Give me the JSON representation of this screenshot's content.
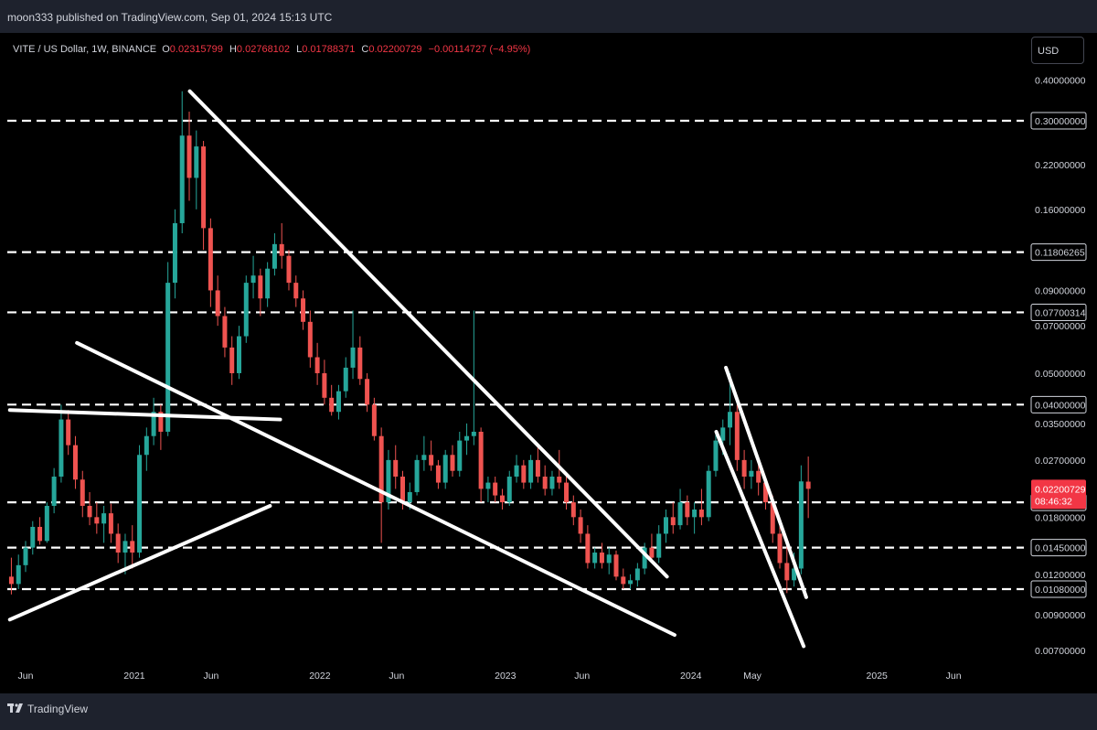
{
  "header": {
    "published_line": "moon333 published on TradingView.com, Sep 01, 2024 15:13 UTC"
  },
  "legend": {
    "symbol": "VITE / US Dollar, 1W, BINANCE",
    "open_label": "O",
    "open": "0.02315799",
    "high_label": "H",
    "high": "0.02768102",
    "low_label": "L",
    "low": "0.01788371",
    "close_label": "C",
    "close": "0.02200729",
    "change": "−0.00114727 (−4.95%)"
  },
  "currency_button": "USD",
  "footer": {
    "brand": "TradingView"
  },
  "colors": {
    "up": "#26a69a",
    "down": "#ef5350",
    "price_tag": "#f23645",
    "lines": "#ffffff",
    "background": "#000000"
  },
  "chart_data": {
    "type": "candlestick",
    "scale": "log",
    "price_axis_labels": [
      "0.40000000",
      "0.22000000",
      "0.16000000",
      "0.09000000",
      "0.07000000",
      "0.05000000",
      "0.03500000",
      "0.02700000",
      "0.01800000",
      "0.01200000",
      "0.00900000",
      "0.00700000"
    ],
    "horizontal_levels": [
      "0.30000000",
      "0.11806265",
      "0.07700314",
      "0.04000000",
      "0.02000000",
      "0.01450000",
      "0.01080000"
    ],
    "last_price": {
      "value": "0.02200729",
      "countdown": "08:46:32"
    },
    "time_axis_labels": [
      {
        "label": "Jun",
        "date": "2020-06-01"
      },
      {
        "label": "2021",
        "date": "2021-01-01"
      },
      {
        "label": "Jun",
        "date": "2021-06-01"
      },
      {
        "label": "2022",
        "date": "2022-01-01"
      },
      {
        "label": "Jun",
        "date": "2022-06-01"
      },
      {
        "label": "2023",
        "date": "2023-01-01"
      },
      {
        "label": "Jun",
        "date": "2023-06-01"
      },
      {
        "label": "2024",
        "date": "2024-01-01"
      },
      {
        "label": "May",
        "date": "2024-05-01"
      },
      {
        "label": "2025",
        "date": "2025-01-01"
      },
      {
        "label": "Jun",
        "date": "2025-06-01"
      }
    ],
    "trendlines": [
      {
        "name": "upper-falling-line",
        "p1": {
          "date": "2021-04-20",
          "price": 0.37
        },
        "p2": {
          "date": "2023-11-15",
          "price": 0.0118
        }
      },
      {
        "name": "lower-falling-line",
        "p1": {
          "date": "2020-09-10",
          "price": 0.062
        },
        "p2": {
          "date": "2023-11-30",
          "price": 0.0078
        }
      },
      {
        "name": "left-flat-line",
        "p1": {
          "date": "2020-05-01",
          "price": 0.0385
        },
        "p2": {
          "date": "2021-10-15",
          "price": 0.036
        }
      },
      {
        "name": "left-rising-line",
        "p1": {
          "date": "2020-05-01",
          "price": 0.0087
        },
        "p2": {
          "date": "2021-09-25",
          "price": 0.0195
        }
      },
      {
        "name": "wedge-upper-line",
        "p1": {
          "date": "2024-03-10",
          "price": 0.052
        },
        "p2": {
          "date": "2024-08-15",
          "price": 0.0102
        }
      },
      {
        "name": "wedge-lower-line",
        "p1": {
          "date": "2024-02-20",
          "price": 0.033
        },
        "p2": {
          "date": "2024-08-10",
          "price": 0.0072
        }
      }
    ],
    "candles": [
      {
        "d": "2020-05-04",
        "o": 0.0118,
        "h": 0.0135,
        "l": 0.0104,
        "c": 0.0112
      },
      {
        "d": "2020-05-18",
        "o": 0.0112,
        "h": 0.0138,
        "l": 0.0108,
        "c": 0.0128
      },
      {
        "d": "2020-06-01",
        "o": 0.0128,
        "h": 0.0152,
        "l": 0.0122,
        "c": 0.0145
      },
      {
        "d": "2020-06-15",
        "o": 0.0145,
        "h": 0.0175,
        "l": 0.0138,
        "c": 0.0168
      },
      {
        "d": "2020-06-29",
        "o": 0.0168,
        "h": 0.018,
        "l": 0.0148,
        "c": 0.0152
      },
      {
        "d": "2020-07-13",
        "o": 0.0152,
        "h": 0.02,
        "l": 0.015,
        "c": 0.0195
      },
      {
        "d": "2020-07-27",
        "o": 0.0195,
        "h": 0.0255,
        "l": 0.0185,
        "c": 0.024
      },
      {
        "d": "2020-08-10",
        "o": 0.024,
        "h": 0.04,
        "l": 0.023,
        "c": 0.036
      },
      {
        "d": "2020-08-24",
        "o": 0.036,
        "h": 0.0385,
        "l": 0.028,
        "c": 0.03
      },
      {
        "d": "2020-09-07",
        "o": 0.03,
        "h": 0.032,
        "l": 0.022,
        "c": 0.0235
      },
      {
        "d": "2020-09-21",
        "o": 0.0235,
        "h": 0.025,
        "l": 0.018,
        "c": 0.0195
      },
      {
        "d": "2020-10-05",
        "o": 0.0195,
        "h": 0.0215,
        "l": 0.017,
        "c": 0.018
      },
      {
        "d": "2020-10-19",
        "o": 0.018,
        "h": 0.02,
        "l": 0.016,
        "c": 0.0172
      },
      {
        "d": "2020-11-02",
        "o": 0.0172,
        "h": 0.0195,
        "l": 0.015,
        "c": 0.0185
      },
      {
        "d": "2020-11-16",
        "o": 0.0185,
        "h": 0.0198,
        "l": 0.015,
        "c": 0.016
      },
      {
        "d": "2020-11-30",
        "o": 0.016,
        "h": 0.0172,
        "l": 0.013,
        "c": 0.014
      },
      {
        "d": "2020-12-14",
        "o": 0.014,
        "h": 0.016,
        "l": 0.012,
        "c": 0.0152
      },
      {
        "d": "2020-12-28",
        "o": 0.0152,
        "h": 0.017,
        "l": 0.0125,
        "c": 0.014
      },
      {
        "d": "2021-01-11",
        "o": 0.014,
        "h": 0.03,
        "l": 0.0135,
        "c": 0.028
      },
      {
        "d": "2021-01-25",
        "o": 0.028,
        "h": 0.034,
        "l": 0.025,
        "c": 0.032
      },
      {
        "d": "2021-02-08",
        "o": 0.032,
        "h": 0.042,
        "l": 0.03,
        "c": 0.038
      },
      {
        "d": "2021-02-22",
        "o": 0.038,
        "h": 0.04,
        "l": 0.029,
        "c": 0.033
      },
      {
        "d": "2021-03-08",
        "o": 0.033,
        "h": 0.11,
        "l": 0.032,
        "c": 0.095
      },
      {
        "d": "2021-03-22",
        "o": 0.095,
        "h": 0.16,
        "l": 0.085,
        "c": 0.145
      },
      {
        "d": "2021-04-05",
        "o": 0.145,
        "h": 0.37,
        "l": 0.135,
        "c": 0.27
      },
      {
        "d": "2021-04-19",
        "o": 0.27,
        "h": 0.32,
        "l": 0.17,
        "c": 0.2
      },
      {
        "d": "2021-05-03",
        "o": 0.2,
        "h": 0.28,
        "l": 0.16,
        "c": 0.25
      },
      {
        "d": "2021-05-17",
        "o": 0.25,
        "h": 0.26,
        "l": 0.12,
        "c": 0.14
      },
      {
        "d": "2021-05-31",
        "o": 0.14,
        "h": 0.15,
        "l": 0.08,
        "c": 0.09
      },
      {
        "d": "2021-06-14",
        "o": 0.09,
        "h": 0.1,
        "l": 0.07,
        "c": 0.075
      },
      {
        "d": "2021-06-28",
        "o": 0.075,
        "h": 0.08,
        "l": 0.056,
        "c": 0.06
      },
      {
        "d": "2021-07-12",
        "o": 0.06,
        "h": 0.065,
        "l": 0.046,
        "c": 0.05
      },
      {
        "d": "2021-07-26",
        "o": 0.05,
        "h": 0.07,
        "l": 0.048,
        "c": 0.065
      },
      {
        "d": "2021-08-09",
        "o": 0.065,
        "h": 0.1,
        "l": 0.062,
        "c": 0.095
      },
      {
        "d": "2021-08-23",
        "o": 0.095,
        "h": 0.115,
        "l": 0.085,
        "c": 0.1
      },
      {
        "d": "2021-09-06",
        "o": 0.1,
        "h": 0.105,
        "l": 0.075,
        "c": 0.085
      },
      {
        "d": "2021-09-20",
        "o": 0.085,
        "h": 0.11,
        "l": 0.08,
        "c": 0.105
      },
      {
        "d": "2021-10-04",
        "o": 0.105,
        "h": 0.135,
        "l": 0.1,
        "c": 0.125
      },
      {
        "d": "2021-10-18",
        "o": 0.125,
        "h": 0.145,
        "l": 0.105,
        "c": 0.115
      },
      {
        "d": "2021-11-01",
        "o": 0.115,
        "h": 0.12,
        "l": 0.09,
        "c": 0.095
      },
      {
        "d": "2021-11-15",
        "o": 0.095,
        "h": 0.1,
        "l": 0.08,
        "c": 0.085
      },
      {
        "d": "2021-11-29",
        "o": 0.085,
        "h": 0.09,
        "l": 0.068,
        "c": 0.072
      },
      {
        "d": "2021-12-13",
        "o": 0.072,
        "h": 0.078,
        "l": 0.052,
        "c": 0.056
      },
      {
        "d": "2021-12-27",
        "o": 0.056,
        "h": 0.062,
        "l": 0.046,
        "c": 0.05
      },
      {
        "d": "2022-01-10",
        "o": 0.05,
        "h": 0.055,
        "l": 0.04,
        "c": 0.042
      },
      {
        "d": "2022-01-24",
        "o": 0.042,
        "h": 0.046,
        "l": 0.037,
        "c": 0.038
      },
      {
        "d": "2022-02-07",
        "o": 0.038,
        "h": 0.046,
        "l": 0.036,
        "c": 0.044
      },
      {
        "d": "2022-02-21",
        "o": 0.044,
        "h": 0.056,
        "l": 0.042,
        "c": 0.052
      },
      {
        "d": "2022-03-07",
        "o": 0.052,
        "h": 0.078,
        "l": 0.048,
        "c": 0.06
      },
      {
        "d": "2022-03-21",
        "o": 0.06,
        "h": 0.065,
        "l": 0.046,
        "c": 0.048
      },
      {
        "d": "2022-04-04",
        "o": 0.048,
        "h": 0.05,
        "l": 0.038,
        "c": 0.04
      },
      {
        "d": "2022-04-18",
        "o": 0.04,
        "h": 0.042,
        "l": 0.031,
        "c": 0.032
      },
      {
        "d": "2022-05-02",
        "o": 0.032,
        "h": 0.034,
        "l": 0.015,
        "c": 0.02
      },
      {
        "d": "2022-05-16",
        "o": 0.02,
        "h": 0.029,
        "l": 0.019,
        "c": 0.027
      },
      {
        "d": "2022-05-30",
        "o": 0.027,
        "h": 0.03,
        "l": 0.022,
        "c": 0.024
      },
      {
        "d": "2022-06-13",
        "o": 0.024,
        "h": 0.025,
        "l": 0.019,
        "c": 0.02
      },
      {
        "d": "2022-06-27",
        "o": 0.02,
        "h": 0.023,
        "l": 0.019,
        "c": 0.0215
      },
      {
        "d": "2022-07-11",
        "o": 0.0215,
        "h": 0.028,
        "l": 0.021,
        "c": 0.027
      },
      {
        "d": "2022-07-25",
        "o": 0.027,
        "h": 0.032,
        "l": 0.025,
        "c": 0.028
      },
      {
        "d": "2022-08-08",
        "o": 0.028,
        "h": 0.031,
        "l": 0.025,
        "c": 0.026
      },
      {
        "d": "2022-08-22",
        "o": 0.026,
        "h": 0.027,
        "l": 0.022,
        "c": 0.023
      },
      {
        "d": "2022-09-05",
        "o": 0.023,
        "h": 0.029,
        "l": 0.022,
        "c": 0.028
      },
      {
        "d": "2022-09-19",
        "o": 0.028,
        "h": 0.03,
        "l": 0.024,
        "c": 0.025
      },
      {
        "d": "2022-10-03",
        "o": 0.025,
        "h": 0.033,
        "l": 0.024,
        "c": 0.031
      },
      {
        "d": "2022-10-17",
        "o": 0.031,
        "h": 0.035,
        "l": 0.028,
        "c": 0.032
      },
      {
        "d": "2022-10-31",
        "o": 0.032,
        "h": 0.078,
        "l": 0.03,
        "c": 0.033
      },
      {
        "d": "2022-11-14",
        "o": 0.033,
        "h": 0.034,
        "l": 0.02,
        "c": 0.022
      },
      {
        "d": "2022-11-28",
        "o": 0.022,
        "h": 0.024,
        "l": 0.02,
        "c": 0.023
      },
      {
        "d": "2022-12-12",
        "o": 0.023,
        "h": 0.024,
        "l": 0.02,
        "c": 0.021
      },
      {
        "d": "2022-12-26",
        "o": 0.021,
        "h": 0.022,
        "l": 0.019,
        "c": 0.02
      },
      {
        "d": "2023-01-09",
        "o": 0.02,
        "h": 0.025,
        "l": 0.0195,
        "c": 0.024
      },
      {
        "d": "2023-01-23",
        "o": 0.024,
        "h": 0.028,
        "l": 0.023,
        "c": 0.026
      },
      {
        "d": "2023-02-06",
        "o": 0.026,
        "h": 0.027,
        "l": 0.022,
        "c": 0.023
      },
      {
        "d": "2023-02-20",
        "o": 0.023,
        "h": 0.028,
        "l": 0.022,
        "c": 0.027
      },
      {
        "d": "2023-03-06",
        "o": 0.027,
        "h": 0.03,
        "l": 0.023,
        "c": 0.024
      },
      {
        "d": "2023-03-20",
        "o": 0.024,
        "h": 0.026,
        "l": 0.021,
        "c": 0.022
      },
      {
        "d": "2023-04-03",
        "o": 0.022,
        "h": 0.025,
        "l": 0.021,
        "c": 0.024
      },
      {
        "d": "2023-04-17",
        "o": 0.024,
        "h": 0.029,
        "l": 0.022,
        "c": 0.023
      },
      {
        "d": "2023-05-01",
        "o": 0.023,
        "h": 0.024,
        "l": 0.019,
        "c": 0.02
      },
      {
        "d": "2023-05-15",
        "o": 0.02,
        "h": 0.021,
        "l": 0.017,
        "c": 0.018
      },
      {
        "d": "2023-05-29",
        "o": 0.018,
        "h": 0.019,
        "l": 0.015,
        "c": 0.016
      },
      {
        "d": "2023-06-12",
        "o": 0.016,
        "h": 0.017,
        "l": 0.0125,
        "c": 0.013
      },
      {
        "d": "2023-06-26",
        "o": 0.013,
        "h": 0.0145,
        "l": 0.0125,
        "c": 0.014
      },
      {
        "d": "2023-07-10",
        "o": 0.014,
        "h": 0.015,
        "l": 0.0125,
        "c": 0.013
      },
      {
        "d": "2023-07-24",
        "o": 0.013,
        "h": 0.0145,
        "l": 0.012,
        "c": 0.0138
      },
      {
        "d": "2023-08-07",
        "o": 0.0138,
        "h": 0.0142,
        "l": 0.0115,
        "c": 0.0118
      },
      {
        "d": "2023-08-21",
        "o": 0.0118,
        "h": 0.0125,
        "l": 0.0108,
        "c": 0.0112
      },
      {
        "d": "2023-09-04",
        "o": 0.0112,
        "h": 0.012,
        "l": 0.0108,
        "c": 0.0115
      },
      {
        "d": "2023-09-18",
        "o": 0.0115,
        "h": 0.013,
        "l": 0.011,
        "c": 0.0125
      },
      {
        "d": "2023-10-02",
        "o": 0.0125,
        "h": 0.015,
        "l": 0.012,
        "c": 0.0145
      },
      {
        "d": "2023-10-16",
        "o": 0.0145,
        "h": 0.016,
        "l": 0.013,
        "c": 0.0135
      },
      {
        "d": "2023-10-30",
        "o": 0.0135,
        "h": 0.017,
        "l": 0.013,
        "c": 0.016
      },
      {
        "d": "2023-11-13",
        "o": 0.016,
        "h": 0.019,
        "l": 0.015,
        "c": 0.018
      },
      {
        "d": "2023-11-27",
        "o": 0.018,
        "h": 0.02,
        "l": 0.016,
        "c": 0.017
      },
      {
        "d": "2023-12-11",
        "o": 0.017,
        "h": 0.022,
        "l": 0.0165,
        "c": 0.02
      },
      {
        "d": "2023-12-25",
        "o": 0.02,
        "h": 0.021,
        "l": 0.017,
        "c": 0.018
      },
      {
        "d": "2024-01-08",
        "o": 0.018,
        "h": 0.02,
        "l": 0.016,
        "c": 0.019
      },
      {
        "d": "2024-01-22",
        "o": 0.019,
        "h": 0.022,
        "l": 0.017,
        "c": 0.018
      },
      {
        "d": "2024-02-05",
        "o": 0.018,
        "h": 0.026,
        "l": 0.0175,
        "c": 0.025
      },
      {
        "d": "2024-02-19",
        "o": 0.025,
        "h": 0.033,
        "l": 0.024,
        "c": 0.031
      },
      {
        "d": "2024-03-04",
        "o": 0.031,
        "h": 0.036,
        "l": 0.028,
        "c": 0.034
      },
      {
        "d": "2024-03-18",
        "o": 0.034,
        "h": 0.05,
        "l": 0.03,
        "c": 0.038
      },
      {
        "d": "2024-04-01",
        "o": 0.038,
        "h": 0.04,
        "l": 0.025,
        "c": 0.027
      },
      {
        "d": "2024-04-15",
        "o": 0.027,
        "h": 0.029,
        "l": 0.022,
        "c": 0.024
      },
      {
        "d": "2024-04-29",
        "o": 0.024,
        "h": 0.027,
        "l": 0.022,
        "c": 0.025
      },
      {
        "d": "2024-05-13",
        "o": 0.025,
        "h": 0.027,
        "l": 0.021,
        "c": 0.023
      },
      {
        "d": "2024-05-27",
        "o": 0.023,
        "h": 0.024,
        "l": 0.019,
        "c": 0.02
      },
      {
        "d": "2024-06-10",
        "o": 0.02,
        "h": 0.021,
        "l": 0.015,
        "c": 0.016
      },
      {
        "d": "2024-06-24",
        "o": 0.016,
        "h": 0.017,
        "l": 0.0125,
        "c": 0.013
      },
      {
        "d": "2024-07-08",
        "o": 0.013,
        "h": 0.015,
        "l": 0.0105,
        "c": 0.0115
      },
      {
        "d": "2024-07-22",
        "o": 0.0115,
        "h": 0.014,
        "l": 0.011,
        "c": 0.0125
      },
      {
        "d": "2024-08-05",
        "o": 0.0125,
        "h": 0.026,
        "l": 0.012,
        "c": 0.0232
      },
      {
        "d": "2024-08-19",
        "o": 0.02315799,
        "h": 0.02768102,
        "l": 0.01788371,
        "c": 0.02200729
      }
    ]
  }
}
